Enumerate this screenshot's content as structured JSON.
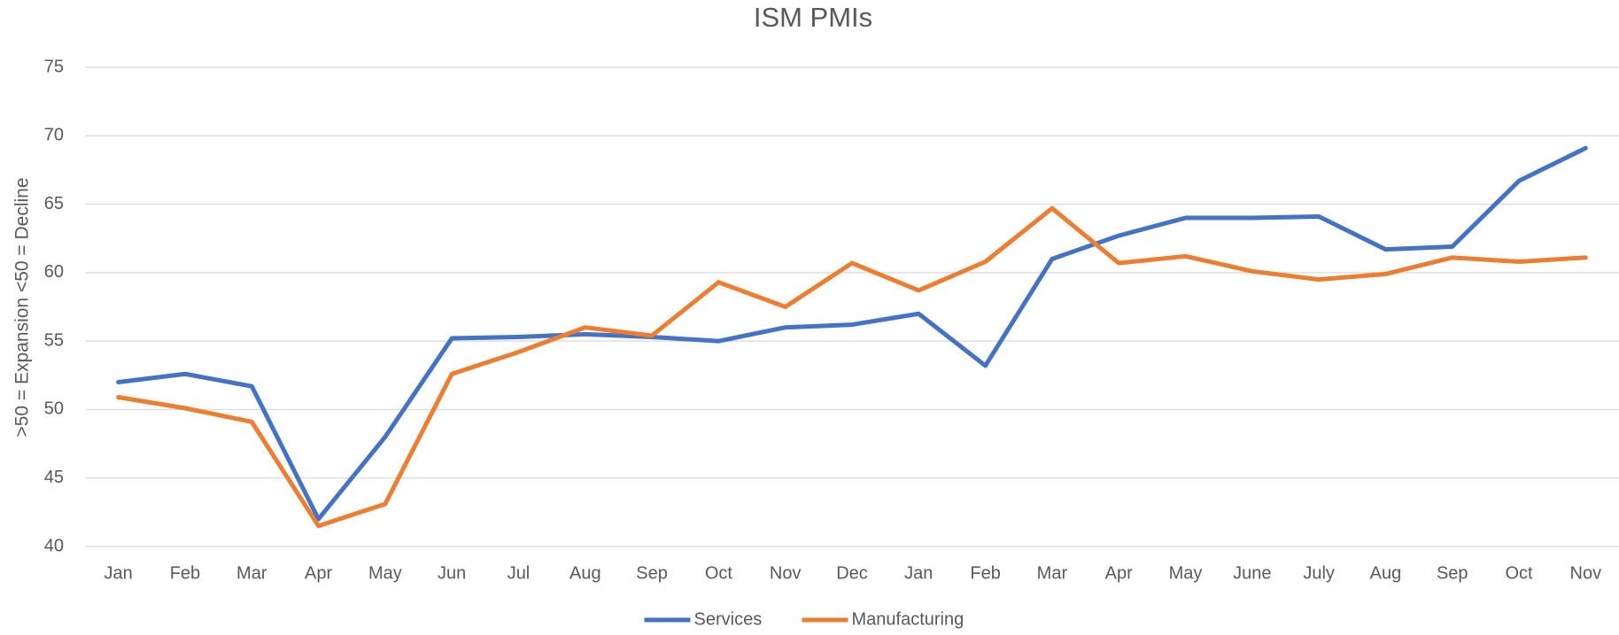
{
  "chart_data": {
    "type": "line",
    "title": "ISM PMIs",
    "y_label": ">50 = Expansion  <50 = Decline",
    "categories": [
      "Jan",
      "Feb",
      "Mar",
      "Apr",
      "May",
      "Jun",
      "Jul",
      "Aug",
      "Sep",
      "Oct",
      "Nov",
      "Dec",
      "Jan",
      "Feb",
      "Mar",
      "Apr",
      "May",
      "June",
      "July",
      "Aug",
      "Sep",
      "Oct",
      "Nov"
    ],
    "series": [
      {
        "name": "Services",
        "color": "#4472c4",
        "values": [
          52.0,
          52.6,
          51.7,
          42.0,
          48.0,
          55.2,
          55.3,
          55.5,
          55.3,
          55.0,
          56.0,
          56.2,
          57.0,
          53.2,
          61.0,
          62.7,
          64.0,
          64.0,
          64.1,
          61.7,
          61.9,
          66.7,
          69.1
        ]
      },
      {
        "name": "Manufacturing",
        "color": "#ed7d31",
        "values": [
          50.9,
          50.1,
          49.1,
          41.5,
          43.1,
          52.6,
          54.2,
          56.0,
          55.4,
          59.3,
          57.5,
          60.7,
          58.7,
          60.8,
          64.7,
          60.7,
          61.2,
          60.1,
          59.5,
          59.9,
          61.1,
          60.8,
          61.1
        ]
      }
    ],
    "ylim": [
      40,
      75
    ],
    "yticks": [
      40,
      45,
      50,
      55,
      60,
      65,
      70,
      75
    ],
    "grid": true,
    "legend": "bottom"
  }
}
